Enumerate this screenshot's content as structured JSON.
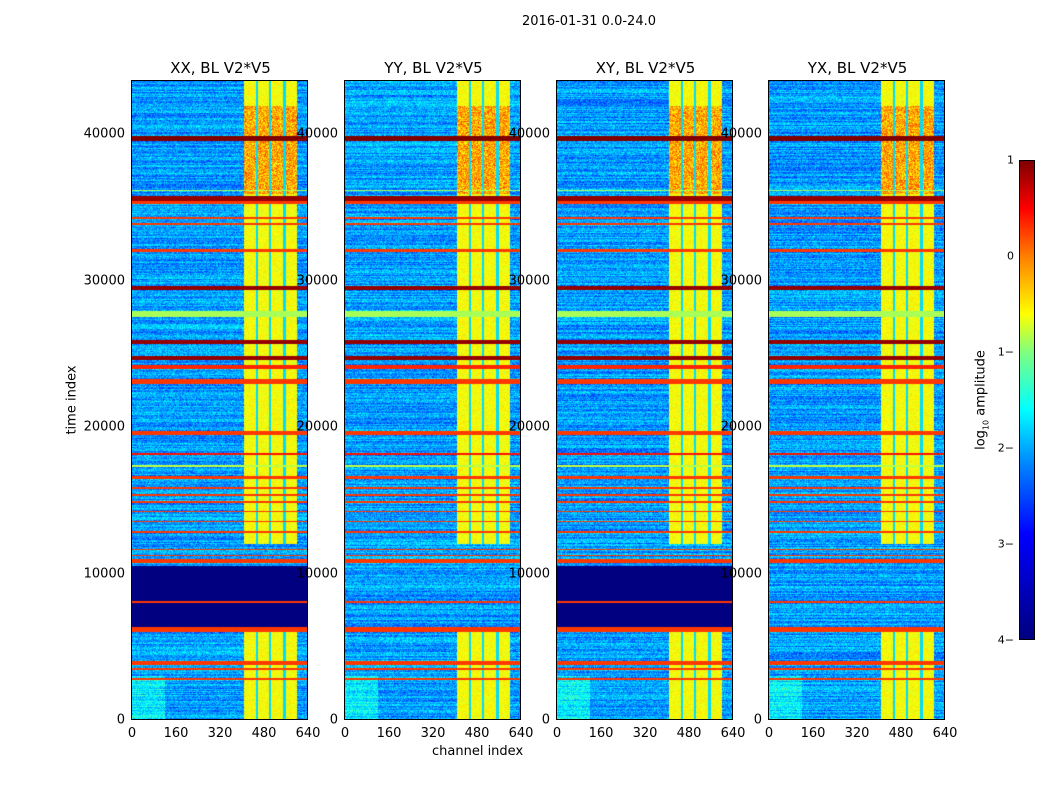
{
  "chart_data": {
    "type": "heatmap",
    "title": "2016-01-31 0.0-24.0",
    "xlabel": "channel index",
    "ylabel": "time index",
    "xlim": [
      0,
      640
    ],
    "ylim": [
      0,
      43700
    ],
    "xticks": [
      "0",
      "160",
      "320",
      "480",
      "640"
    ],
    "yticks": [
      "0",
      "10000",
      "20000",
      "30000",
      "40000"
    ],
    "panels": [
      {
        "title": "XX, BL V2*V5",
        "quiet_gap": true
      },
      {
        "title": "YY, BL V2*V5",
        "quiet_gap": false
      },
      {
        "title": "XY, BL V2*V5",
        "quiet_gap": true
      },
      {
        "title": "YX, BL V2*V5",
        "quiet_gap": false
      }
    ],
    "colorbar": {
      "label": "log10 amplitude",
      "label_main": "log",
      "label_sub": "10",
      "label_rest": " amplitude",
      "range": [
        -4,
        1
      ],
      "ticks": [
        "1",
        "0",
        "−1",
        "−2",
        "−3",
        "−4"
      ],
      "colormap": "jet"
    },
    "background_level": -2.6,
    "bright_channels": [
      409,
      603
    ],
    "bright_level": -0.9,
    "channel_gaps": [
      455,
      503,
      556
    ],
    "quiet_range": [
      6000,
      10500
    ],
    "flagged_bands": [
      [
        39600,
        40000,
        1.0
      ],
      [
        35500,
        35850,
        0.9
      ],
      [
        35300,
        35500,
        0.1
      ],
      [
        34300,
        34450,
        0.1
      ],
      [
        33900,
        34000,
        0.1
      ],
      [
        32000,
        32200,
        0.1
      ],
      [
        29400,
        29700,
        0.9
      ],
      [
        27600,
        28000,
        -1.3
      ],
      [
        25700,
        26000,
        0.9
      ],
      [
        24600,
        24900,
        0.9
      ],
      [
        24000,
        24300,
        0.2
      ],
      [
        23000,
        23300,
        0.1
      ],
      [
        19500,
        19750,
        0.1
      ],
      [
        18100,
        18250,
        0.3
      ],
      [
        16500,
        16650,
        0.1
      ],
      [
        15800,
        15950,
        0.1
      ],
      [
        15300,
        15450,
        0.1
      ],
      [
        14800,
        14950,
        0.1
      ],
      [
        14200,
        14300,
        0.1
      ],
      [
        13500,
        13600,
        0.1
      ],
      [
        12800,
        12900,
        0.1
      ],
      [
        11600,
        11700,
        0.1
      ],
      [
        11200,
        11300,
        0.1
      ],
      [
        10700,
        11000,
        0.1
      ],
      [
        8000,
        8100,
        0.1
      ],
      [
        6000,
        6350,
        0.1
      ],
      [
        3700,
        4000,
        0.1
      ],
      [
        3400,
        3500,
        0.1
      ],
      [
        2700,
        2850,
        0.1
      ],
      [
        36200,
        36300,
        -1.3
      ],
      [
        17300,
        17400,
        -1.2
      ]
    ]
  }
}
